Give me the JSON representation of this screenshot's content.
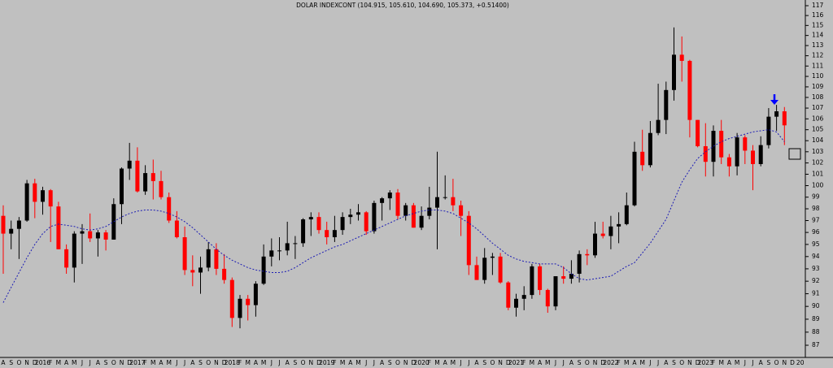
{
  "chart_data": {
    "type": "candlestick",
    "title": "DOLAR INDEXCONT (104.915, 105.610, 104.690, 105.373, +0.51400)",
    "categories": [
      "A",
      "S",
      "O",
      "N",
      "D",
      "2016",
      "F",
      "M",
      "A",
      "M",
      "J",
      "J",
      "A",
      "S",
      "O",
      "N",
      "D",
      "2017",
      "F",
      "M",
      "A",
      "M",
      "J",
      "J",
      "A",
      "S",
      "O",
      "N",
      "D",
      "2018",
      "F",
      "M",
      "A",
      "M",
      "J",
      "J",
      "A",
      "S",
      "O",
      "N",
      "D",
      "2019",
      "F",
      "M",
      "A",
      "M",
      "J",
      "J",
      "A",
      "S",
      "O",
      "N",
      "D",
      "2020",
      "F",
      "M",
      "A",
      "M",
      "J",
      "J",
      "A",
      "S",
      "O",
      "N",
      "D",
      "2021",
      "F",
      "M",
      "A",
      "M",
      "J",
      "J",
      "A",
      "S",
      "O",
      "N",
      "D",
      "2022",
      "F",
      "M",
      "A",
      "M",
      "J",
      "J",
      "A",
      "S",
      "O",
      "N",
      "D",
      "2023",
      "F",
      "M",
      "A",
      "M",
      "J",
      "J",
      "A",
      "S",
      "O",
      "N",
      "D",
      "20"
    ],
    "open": [
      97.4,
      95.9,
      96.3,
      97.0,
      100.2,
      98.6,
      99.6,
      98.2,
      94.6,
      93.1,
      95.9,
      96.1,
      95.5,
      96.0,
      95.4,
      98.4,
      101.5,
      102.2,
      99.5,
      101.1,
      100.4,
      99.0,
      97.0,
      95.6,
      92.9,
      92.7,
      93.1,
      94.6,
      93.0,
      92.1,
      89.1,
      90.6,
      90.1,
      91.8,
      94.0,
      94.5,
      94.5,
      95.1,
      95.1,
      97.1,
      97.3,
      96.2,
      95.6,
      96.2,
      97.3,
      97.5,
      97.7,
      96.1,
      98.5,
      98.9,
      99.4,
      97.4,
      98.3,
      96.4,
      97.4,
      98.1,
      99.0,
      99.0,
      98.3,
      97.4,
      93.3,
      92.1,
      93.9,
      94.0,
      91.9,
      89.9,
      90.6,
      90.9,
      93.2,
      91.3,
      90.0,
      92.4,
      92.2,
      92.6,
      94.2,
      94.1,
      95.9,
      95.7,
      96.5,
      96.7,
      98.3,
      103.0,
      101.8,
      104.7,
      105.9,
      108.7,
      112.1,
      111.5,
      105.9,
      103.5,
      102.1,
      104.9,
      102.5,
      101.7,
      104.3,
      103.1,
      101.9,
      103.6,
      106.2,
      106.7,
      null,
      null
    ],
    "high": [
      98.3,
      97.0,
      97.3,
      100.5,
      100.6,
      99.9,
      99.7,
      98.6,
      95.0,
      96.1,
      96.7,
      97.6,
      96.2,
      96.2,
      98.9,
      101.6,
      103.8,
      103.4,
      101.8,
      102.3,
      101.3,
      99.4,
      97.8,
      96.5,
      94.1,
      94.0,
      95.2,
      95.1,
      94.2,
      92.3,
      90.9,
      90.9,
      92.0,
      95.0,
      95.5,
      95.6,
      96.9,
      95.7,
      97.2,
      97.7,
      97.7,
      96.9,
      97.4,
      97.7,
      98.0,
      98.4,
      97.8,
      98.7,
      99.0,
      99.6,
      99.7,
      98.5,
      98.5,
      98.2,
      99.9,
      103.0,
      100.9,
      100.6,
      98.7,
      97.8,
      94.0,
      94.7,
      94.3,
      94.3,
      92.0,
      91.0,
      91.6,
      93.4,
      93.4,
      91.4,
      92.4,
      93.2,
      93.7,
      94.5,
      94.6,
      96.9,
      96.9,
      97.4,
      97.7,
      99.4,
      103.9,
      105.0,
      105.8,
      109.3,
      109.5,
      114.8,
      113.9,
      111.6,
      105.9,
      105.6,
      105.4,
      105.9,
      102.8,
      104.7,
      104.5,
      103.6,
      104.4,
      107.0,
      107.3,
      107.1,
      null,
      null
    ],
    "low": [
      92.6,
      94.6,
      93.8,
      96.9,
      97.2,
      97.5,
      95.2,
      94.6,
      92.6,
      91.9,
      93.4,
      95.2,
      94.0,
      94.5,
      95.4,
      96.7,
      100.5,
      99.4,
      99.2,
      98.8,
      98.8,
      96.8,
      95.5,
      92.5,
      91.6,
      91.0,
      92.8,
      92.5,
      91.8,
      88.4,
      88.3,
      88.9,
      89.2,
      91.7,
      93.2,
      93.7,
      94.1,
      93.8,
      94.8,
      95.7,
      95.9,
      95.0,
      95.2,
      95.8,
      96.7,
      97.0,
      95.8,
      95.9,
      97.0,
      97.9,
      97.1,
      97.0,
      96.4,
      96.2,
      97.1,
      94.6,
      98.8,
      97.8,
      95.7,
      92.5,
      92.1,
      91.8,
      92.5,
      91.8,
      89.7,
      89.2,
      89.7,
      90.6,
      90.9,
      89.5,
      89.7,
      91.8,
      91.8,
      91.9,
      93.3,
      93.9,
      95.5,
      94.6,
      95.1,
      96.6,
      98.2,
      101.3,
      101.6,
      104.5,
      104.6,
      107.7,
      109.5,
      104.3,
      103.4,
      100.8,
      100.8,
      101.9,
      100.8,
      100.9,
      101.9,
      99.6,
      101.7,
      103.3,
      104.9,
      103.6,
      null,
      null
    ],
    "close": [
      95.9,
      96.3,
      97.0,
      100.2,
      98.6,
      99.6,
      98.2,
      94.6,
      93.1,
      95.9,
      96.1,
      95.5,
      96.0,
      95.4,
      98.4,
      101.5,
      102.2,
      99.5,
      101.1,
      100.4,
      99.0,
      97.0,
      95.6,
      92.9,
      92.7,
      93.1,
      94.6,
      93.0,
      92.1,
      89.1,
      90.6,
      90.1,
      91.8,
      94.0,
      94.5,
      94.5,
      95.1,
      95.1,
      97.1,
      97.3,
      96.2,
      95.6,
      96.2,
      97.3,
      97.5,
      97.7,
      96.1,
      98.5,
      98.9,
      99.4,
      97.4,
      98.3,
      96.4,
      97.4,
      98.1,
      99.0,
      99.0,
      98.3,
      97.4,
      93.3,
      92.1,
      93.9,
      94.0,
      91.9,
      89.9,
      90.6,
      90.9,
      93.2,
      91.3,
      90.0,
      92.4,
      92.2,
      92.6,
      94.2,
      94.1,
      95.9,
      95.7,
      96.5,
      96.7,
      98.3,
      103.0,
      101.8,
      104.7,
      105.9,
      108.7,
      112.1,
      111.5,
      105.9,
      103.5,
      102.1,
      104.9,
      102.5,
      101.7,
      104.3,
      103.1,
      101.9,
      103.6,
      106.2,
      106.7,
      105.4,
      null,
      null
    ],
    "up_color": "#000000",
    "down_color": "#ff0000",
    "moving_average": {
      "color": "#1c1cb4",
      "values": [
        90.3,
        91.5,
        92.7,
        93.9,
        95.0,
        95.9,
        96.5,
        96.7,
        96.6,
        96.5,
        96.3,
        96.2,
        96.3,
        96.5,
        96.9,
        97.3,
        97.6,
        97.8,
        97.9,
        97.9,
        97.8,
        97.6,
        97.3,
        96.9,
        96.4,
        95.8,
        95.2,
        94.6,
        94.1,
        93.7,
        93.4,
        93.1,
        92.9,
        92.8,
        92.7,
        92.7,
        92.8,
        93.1,
        93.5,
        93.9,
        94.2,
        94.5,
        94.8,
        95.0,
        95.3,
        95.6,
        95.9,
        96.2,
        96.5,
        96.8,
        97.1,
        97.4,
        97.6,
        97.8,
        97.9,
        97.9,
        97.8,
        97.6,
        97.2,
        96.8,
        96.3,
        95.7,
        95.1,
        94.6,
        94.1,
        93.8,
        93.6,
        93.5,
        93.4,
        93.4,
        93.4,
        93.1,
        92.6,
        92.2,
        92.1,
        92.2,
        92.3,
        92.4,
        92.8,
        93.2,
        93.5,
        94.3,
        95.1,
        96.1,
        97.1,
        98.7,
        100.3,
        101.4,
        102.4,
        103.0,
        103.5,
        103.9,
        104.2,
        104.4,
        104.6,
        104.8,
        104.9,
        105.0,
        104.8,
        103.9,
        null,
        null
      ]
    },
    "ylim": [
      87,
      117
    ],
    "yticks": [
      87,
      88,
      89,
      90,
      91,
      92,
      93,
      94,
      95,
      96,
      97,
      98,
      99,
      100,
      101,
      102,
      103,
      104,
      105,
      106,
      107,
      108,
      109,
      110,
      111,
      112,
      113,
      114,
      115,
      116,
      117
    ],
    "log_scale": true,
    "grid": false
  }
}
